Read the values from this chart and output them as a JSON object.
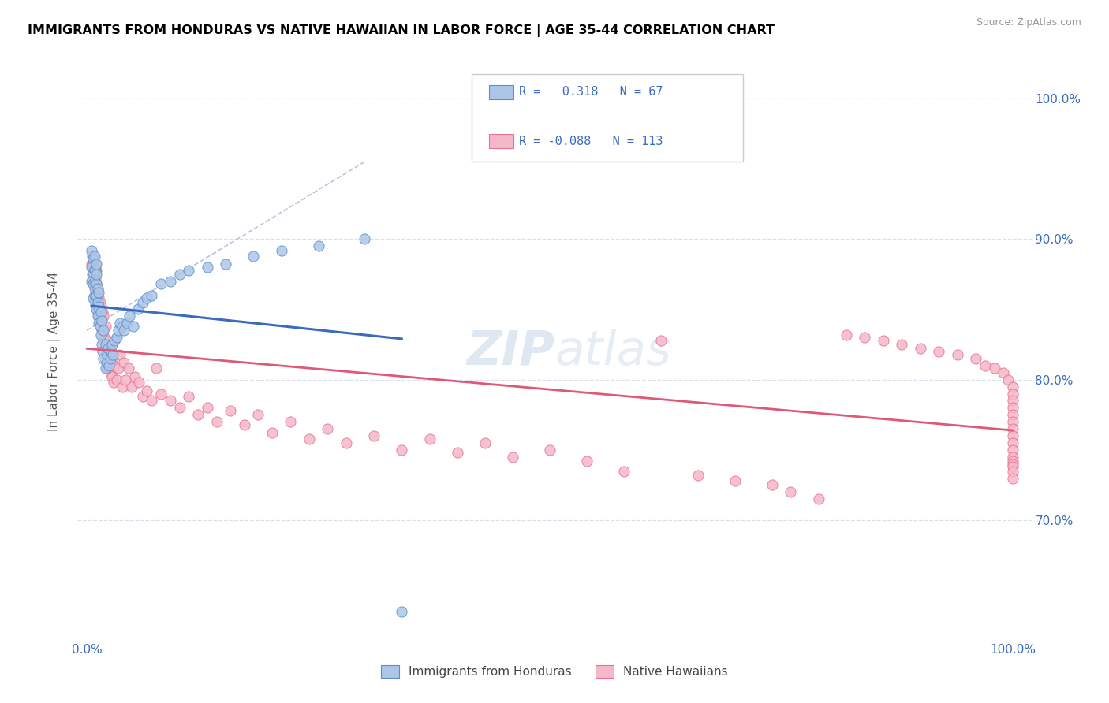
{
  "title": "IMMIGRANTS FROM HONDURAS VS NATIVE HAWAIIAN IN LABOR FORCE | AGE 35-44 CORRELATION CHART",
  "source": "Source: ZipAtlas.com",
  "ylabel": "In Labor Force | Age 35-44",
  "blue_R": 0.318,
  "blue_N": 67,
  "pink_R": -0.088,
  "pink_N": 113,
  "legend1": "Immigrants from Honduras",
  "legend2": "Native Hawaiians",
  "blue_color": "#adc6e8",
  "blue_edge_color": "#5b8ec9",
  "blue_line_color": "#3a6bbf",
  "pink_color": "#f5b8c8",
  "pink_edge_color": "#e87090",
  "pink_line_color": "#e05878",
  "dashed_line_color": "#9ab0d0",
  "grid_color": "#d8e0ec",
  "blue_scatter_x": [
    0.005,
    0.005,
    0.005,
    0.007,
    0.007,
    0.007,
    0.007,
    0.008,
    0.008,
    0.008,
    0.008,
    0.009,
    0.009,
    0.009,
    0.01,
    0.01,
    0.01,
    0.01,
    0.01,
    0.012,
    0.012,
    0.012,
    0.013,
    0.013,
    0.013,
    0.014,
    0.015,
    0.015,
    0.016,
    0.016,
    0.017,
    0.018,
    0.018,
    0.02,
    0.02,
    0.021,
    0.022,
    0.023,
    0.024,
    0.025,
    0.026,
    0.027,
    0.028,
    0.03,
    0.032,
    0.034,
    0.036,
    0.038,
    0.04,
    0.043,
    0.046,
    0.05,
    0.055,
    0.06,
    0.065,
    0.07,
    0.08,
    0.09,
    0.1,
    0.11,
    0.13,
    0.15,
    0.18,
    0.21,
    0.25,
    0.3,
    0.34
  ],
  "blue_scatter_y": [
    0.87,
    0.88,
    0.892,
    0.858,
    0.868,
    0.876,
    0.886,
    0.86,
    0.87,
    0.878,
    0.888,
    0.855,
    0.865,
    0.878,
    0.85,
    0.86,
    0.868,
    0.875,
    0.882,
    0.845,
    0.855,
    0.865,
    0.84,
    0.852,
    0.862,
    0.838,
    0.832,
    0.848,
    0.825,
    0.842,
    0.82,
    0.815,
    0.835,
    0.808,
    0.825,
    0.812,
    0.818,
    0.822,
    0.81,
    0.815,
    0.82,
    0.825,
    0.818,
    0.828,
    0.83,
    0.835,
    0.84,
    0.838,
    0.835,
    0.84,
    0.845,
    0.838,
    0.85,
    0.855,
    0.858,
    0.86,
    0.868,
    0.87,
    0.875,
    0.878,
    0.88,
    0.882,
    0.888,
    0.892,
    0.895,
    0.9,
    0.635
  ],
  "pink_scatter_x": [
    0.005,
    0.006,
    0.006,
    0.007,
    0.007,
    0.008,
    0.008,
    0.009,
    0.009,
    0.009,
    0.01,
    0.01,
    0.01,
    0.011,
    0.011,
    0.012,
    0.012,
    0.013,
    0.013,
    0.014,
    0.014,
    0.015,
    0.015,
    0.016,
    0.017,
    0.018,
    0.018,
    0.019,
    0.02,
    0.02,
    0.021,
    0.022,
    0.022,
    0.023,
    0.024,
    0.025,
    0.026,
    0.027,
    0.028,
    0.029,
    0.03,
    0.032,
    0.034,
    0.036,
    0.038,
    0.04,
    0.042,
    0.045,
    0.048,
    0.052,
    0.056,
    0.06,
    0.065,
    0.07,
    0.075,
    0.08,
    0.09,
    0.1,
    0.11,
    0.12,
    0.13,
    0.14,
    0.155,
    0.17,
    0.185,
    0.2,
    0.22,
    0.24,
    0.26,
    0.28,
    0.31,
    0.34,
    0.37,
    0.4,
    0.43,
    0.46,
    0.5,
    0.54,
    0.58,
    0.62,
    0.66,
    0.7,
    0.74,
    0.76,
    0.79,
    0.82,
    0.84,
    0.86,
    0.88,
    0.9,
    0.92,
    0.94,
    0.96,
    0.97,
    0.98,
    0.99,
    0.995,
    1.0,
    1.0,
    1.0,
    1.0,
    1.0,
    1.0,
    1.0,
    1.0,
    1.0,
    1.0,
    1.0,
    1.0,
    1.0,
    1.0,
    1.0,
    1.0
  ],
  "pink_scatter_y": [
    0.882,
    0.875,
    0.888,
    0.87,
    0.882,
    0.865,
    0.878,
    0.86,
    0.872,
    0.882,
    0.855,
    0.868,
    0.878,
    0.852,
    0.865,
    0.848,
    0.862,
    0.845,
    0.858,
    0.842,
    0.855,
    0.838,
    0.852,
    0.835,
    0.848,
    0.832,
    0.845,
    0.828,
    0.822,
    0.838,
    0.818,
    0.812,
    0.828,
    0.808,
    0.822,
    0.805,
    0.818,
    0.802,
    0.815,
    0.798,
    0.81,
    0.8,
    0.808,
    0.818,
    0.795,
    0.812,
    0.8,
    0.808,
    0.795,
    0.802,
    0.798,
    0.788,
    0.792,
    0.785,
    0.808,
    0.79,
    0.785,
    0.78,
    0.788,
    0.775,
    0.78,
    0.77,
    0.778,
    0.768,
    0.775,
    0.762,
    0.77,
    0.758,
    0.765,
    0.755,
    0.76,
    0.75,
    0.758,
    0.748,
    0.755,
    0.745,
    0.75,
    0.742,
    0.735,
    0.828,
    0.732,
    0.728,
    0.725,
    0.72,
    0.715,
    0.832,
    0.83,
    0.828,
    0.825,
    0.822,
    0.82,
    0.818,
    0.815,
    0.81,
    0.808,
    0.805,
    0.8,
    0.795,
    0.79,
    0.785,
    0.78,
    0.775,
    0.77,
    0.765,
    0.76,
    0.755,
    0.75,
    0.745,
    0.742,
    0.74,
    0.738,
    0.735,
    0.73
  ]
}
